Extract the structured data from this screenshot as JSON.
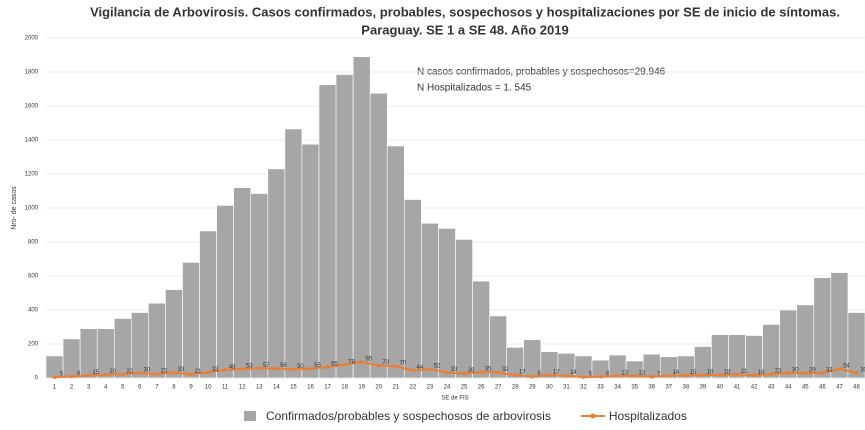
{
  "chart_data": {
    "type": "bar-line",
    "title": [
      "Vigilancia de Arbovirosis. Casos confirmados, probables, sospechosos y hospitalizaciones por SE de inicio de síntomas.",
      "Paraguay. SE 1 a SE 48. Año 2019"
    ],
    "annotations": [
      "N casos confirmados, probables y sospechosos=29.946",
      "N Hospitalizados = 1. 545"
    ],
    "y_label": "Nro- de casos",
    "x_label": "SE de FIS",
    "categories": [
      1,
      2,
      3,
      4,
      5,
      6,
      7,
      8,
      9,
      10,
      11,
      12,
      13,
      14,
      15,
      16,
      17,
      18,
      19,
      20,
      21,
      22,
      23,
      24,
      25,
      26,
      27,
      28,
      29,
      30,
      31,
      32,
      33,
      34,
      35,
      36,
      37,
      38,
      39,
      40,
      41,
      42,
      43,
      44,
      45,
      46,
      47,
      48
    ],
    "series": [
      {
        "name": "Confirmados/probables y sospechosos de arbovirosis",
        "type": "bar",
        "color": "#a6a6a6",
        "values": [
          130,
          230,
          290,
          290,
          350,
          385,
          440,
          520,
          680,
          865,
          1015,
          1120,
          1085,
          1230,
          1465,
          1375,
          1725,
          1785,
          1890,
          1675,
          1365,
          1050,
          910,
          880,
          815,
          570,
          365,
          180,
          225,
          155,
          145,
          130,
          105,
          135,
          100,
          140,
          125,
          130,
          185,
          255,
          255,
          250,
          315,
          400,
          430,
          590,
          620,
          385
        ]
      },
      {
        "name": "Hospitalizados",
        "type": "line",
        "color": "#ed7d31",
        "values": [
          5,
          9,
          15,
          20,
          22,
          30,
          23,
          33,
          21,
          33,
          48,
          53,
          57,
          56,
          50,
          55,
          65,
          78,
          95,
          73,
          70,
          44,
          52,
          33,
          26,
          35,
          32,
          17,
          8,
          17,
          14,
          5,
          8,
          13,
          13,
          7,
          14,
          15,
          18,
          18,
          21,
          16,
          23,
          30,
          29,
          31,
          54,
          30
        ]
      }
    ],
    "ylim": [
      0,
      2000
    ],
    "yticks": [
      0,
      200,
      400,
      600,
      800,
      1000,
      1200,
      1400,
      1600,
      1800,
      2000
    ],
    "grid": true
  }
}
